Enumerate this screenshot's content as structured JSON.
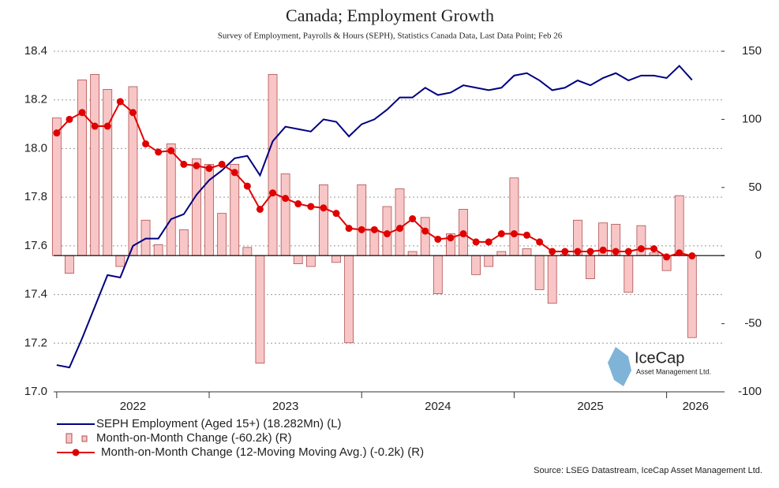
{
  "chart_data": {
    "type": "combo",
    "title": "Canada; Employment Growth",
    "subtitle": "Survey of Employment, Payrolls & Hours (SEPH), Statistics Canada Data, Last Data Point; Feb 26",
    "source": "Source: LSEG Datastream, IceCap Asset Management Ltd.",
    "logo": {
      "name": "IceCap",
      "tagline": "Asset Management Ltd."
    },
    "x": [
      2022,
      2022.0833,
      2022.1667,
      2022.25,
      2022.3333,
      2022.4167,
      2022.5,
      2022.5833,
      2022.6667,
      2022.75,
      2022.8333,
      2022.9167,
      2023,
      2023.0833,
      2023.1667,
      2023.25,
      2023.3333,
      2023.4167,
      2023.5,
      2023.5833,
      2023.6667,
      2023.75,
      2023.8333,
      2023.9167,
      2024,
      2024.0833,
      2024.1667,
      2024.25,
      2024.3333,
      2024.4167,
      2024.5,
      2024.5833,
      2024.6667,
      2024.75,
      2024.8333,
      2024.9167,
      2025,
      2025.0833,
      2025.1667,
      2025.25,
      2025.3333,
      2025.4167,
      2025.5,
      2025.5833,
      2025.6667,
      2025.75,
      2025.8333,
      2025.9167,
      2026,
      2026.0833,
      2026.1667
    ],
    "xlim": [
      2021.98,
      2026.38
    ],
    "xticks": [
      2022,
      2023,
      2024,
      2025,
      2026
    ],
    "ylim": [
      17.0,
      18.4
    ],
    "yticks": [
      {
        "value": 17.0,
        "label": "17.0"
      },
      17.2,
      17.4,
      17.6,
      17.8,
      {
        "value": 18.0,
        "label": "18.0"
      },
      18.2,
      18.4
    ],
    "y2lim": [
      -100,
      150
    ],
    "y2ticks": [
      -100,
      -50,
      0,
      50,
      100,
      150
    ],
    "grid": true,
    "series": [
      {
        "name": "SEPH Employment (Aged 15+) (18.282Mn) (L)",
        "type": "line",
        "color": "#000080",
        "axis": "y",
        "values": [
          17.11,
          17.1,
          17.22,
          17.35,
          17.48,
          17.47,
          17.6,
          17.63,
          17.63,
          17.71,
          17.73,
          17.81,
          17.87,
          17.91,
          17.96,
          17.97,
          17.89,
          18.03,
          18.09,
          18.08,
          18.07,
          18.12,
          18.11,
          18.05,
          18.1,
          18.12,
          18.16,
          18.21,
          18.21,
          18.25,
          18.22,
          18.23,
          18.26,
          18.25,
          18.24,
          18.25,
          18.3,
          18.31,
          18.28,
          18.24,
          18.25,
          18.28,
          18.26,
          18.29,
          18.31,
          18.28,
          18.3,
          18.3,
          18.29,
          18.34,
          18.282
        ]
      },
      {
        "name": "Month-on-Month Change (-60.2k) (R)",
        "type": "bar",
        "color": "#f8c6c6",
        "edge": "#b05050",
        "axis": "y2",
        "values": [
          101,
          -13,
          129,
          133,
          122,
          -8,
          124,
          26,
          8,
          82,
          19,
          71,
          67,
          31,
          67,
          6,
          -79,
          133,
          60,
          -6,
          -8,
          52,
          -5,
          -64,
          52,
          19,
          36,
          49,
          3,
          28,
          -28,
          16,
          34,
          -14,
          -8,
          3,
          57,
          5,
          -25,
          -35,
          1,
          26,
          -17,
          24,
          23,
          -27,
          22,
          2,
          -11,
          44,
          -60.2
        ]
      },
      {
        "name": "Month-on-Month Change (12-Moving Moving Avg.) (-0.2k) (R)",
        "type": "line-markers",
        "color": "#e00000",
        "axis": "y2",
        "values": [
          90,
          100,
          105,
          95,
          95,
          113,
          105,
          82,
          76,
          77,
          67,
          66,
          64,
          67,
          61,
          51,
          34,
          46,
          42,
          38,
          36,
          35,
          31,
          20,
          19,
          19,
          16,
          20,
          27,
          18,
          12,
          13,
          16,
          10,
          10,
          16,
          16,
          15,
          10,
          3,
          3,
          3,
          3,
          4,
          3,
          3,
          5,
          5,
          -1,
          2,
          -0.2
        ]
      }
    ]
  }
}
